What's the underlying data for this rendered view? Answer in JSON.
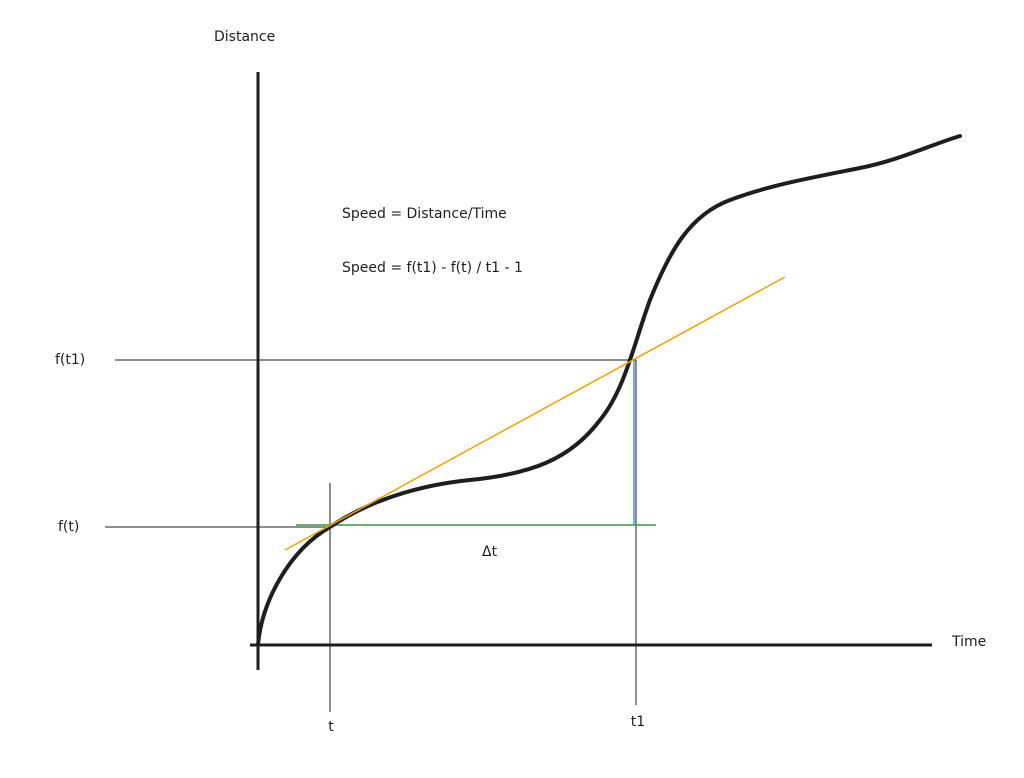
{
  "axes": {
    "y_label": "Distance",
    "x_label": "Time"
  },
  "formulas": [
    "Speed = Distance/Time",
    "Speed = f(t1) - f(t) / t1 - 1"
  ],
  "y_markers": {
    "upper": "f(t1)",
    "lower": "f(t)"
  },
  "x_markers": {
    "left": "t",
    "right": "t1"
  },
  "interval_label": "Δt"
}
